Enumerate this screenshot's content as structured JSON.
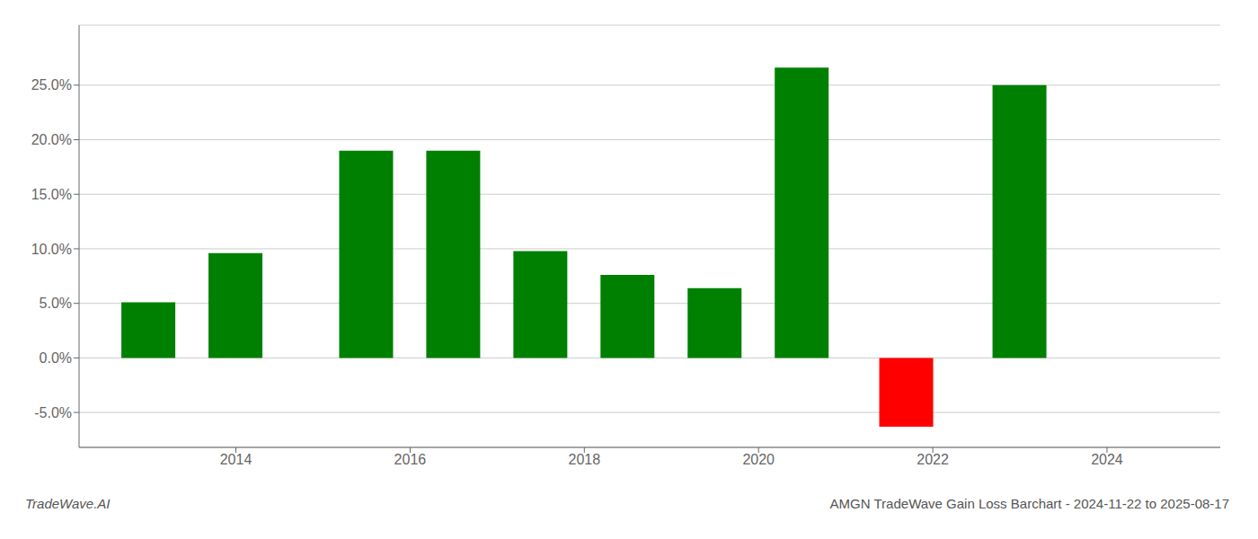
{
  "chart_data": {
    "type": "bar",
    "title": "AMGN TradeWave Gain Loss Barchart - 2024-11-22 to 2025-08-17",
    "annotations": [
      "TradeWave.AI"
    ],
    "x": [
      2013.0,
      2014.0,
      2015.5,
      2016.5,
      2017.5,
      2018.5,
      2019.5,
      2020.5,
      2021.7,
      2023.0
    ],
    "values": [
      0.051,
      0.096,
      0.19,
      0.19,
      0.098,
      0.076,
      0.064,
      0.266,
      -0.063,
      0.25
    ],
    "colors": [
      "#008000",
      "#008000",
      "#008000",
      "#008000",
      "#008000",
      "#008000",
      "#008000",
      "#008000",
      "#ff0000",
      "#008000"
    ],
    "xlim": [
      2012.2,
      2025.3
    ],
    "xticks": [
      2014,
      2016,
      2018,
      2020,
      2022,
      2024
    ],
    "ylim": [
      -0.082,
      0.305
    ],
    "yticks": [
      {
        "value": -0.05,
        "label": "-5.0%"
      },
      {
        "value": 0.0,
        "label": "0.0%"
      },
      {
        "value": 0.05,
        "label": "5.0%"
      },
      {
        "value": 0.1,
        "label": "10.0%"
      },
      {
        "value": 0.15,
        "label": "15.0%"
      },
      {
        "value": 0.2,
        "label": "20.0%"
      },
      {
        "value": 0.25,
        "label": "25.0%"
      }
    ],
    "grid": true
  }
}
